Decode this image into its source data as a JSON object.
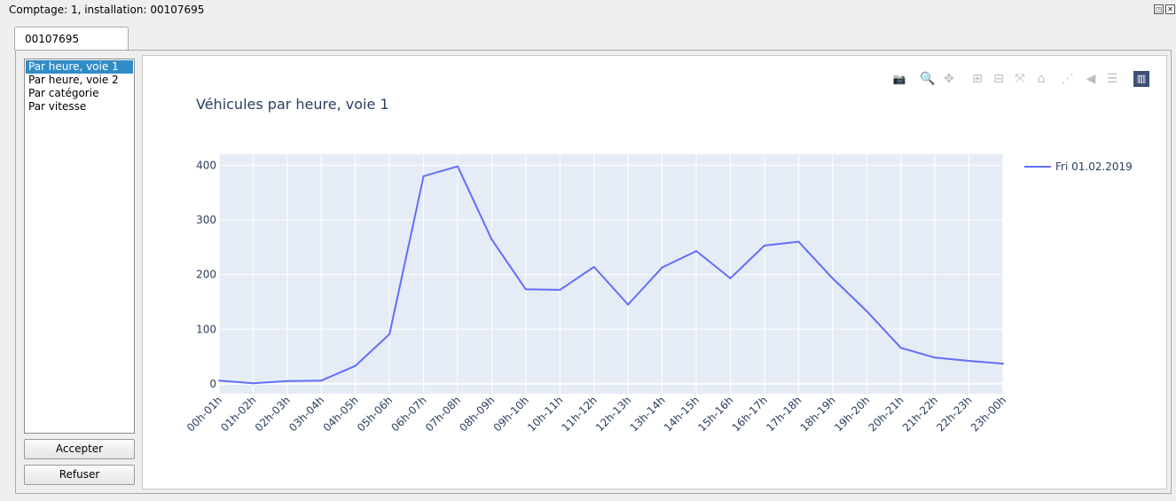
{
  "window": {
    "title": "Comptage: 1, installation: 00107695",
    "restore_glyph": "◳",
    "close_glyph": "✕"
  },
  "tabs": [
    {
      "label": "00107695"
    }
  ],
  "list": {
    "items": [
      {
        "label": "Par heure, voie 1",
        "selected": true
      },
      {
        "label": "Par heure, voie 2",
        "selected": false
      },
      {
        "label": "Par catégorie",
        "selected": false
      },
      {
        "label": "Par vitesse",
        "selected": false
      }
    ]
  },
  "buttons": {
    "accept": "Accepter",
    "reject": "Refuser"
  },
  "modebar": {
    "icons": [
      {
        "name": "camera-icon",
        "glyph": "📷"
      },
      {
        "name": "zoom-icon",
        "glyph": "🔍"
      },
      {
        "name": "pan-icon",
        "glyph": "✥"
      },
      {
        "name": "zoom-in-icon",
        "glyph": "⊞"
      },
      {
        "name": "zoom-out-icon",
        "glyph": "⊟"
      },
      {
        "name": "autoscale-icon",
        "glyph": "⤧"
      },
      {
        "name": "reset-axes-icon",
        "glyph": "⌂"
      },
      {
        "name": "spike-lines-icon",
        "glyph": "⋰"
      },
      {
        "name": "hover-closest-icon",
        "glyph": "◀"
      },
      {
        "name": "hover-compare-icon",
        "glyph": "☰"
      },
      {
        "name": "plotly-logo-icon",
        "glyph": "▥"
      }
    ]
  },
  "colors": {
    "line": "#636efa",
    "plot_bg": "#e5ecf6",
    "axis_text": "#2a3f5f",
    "selected_item": "#308cc6"
  },
  "chart_data": {
    "type": "line",
    "title": "Véhicules par heure, voie 1",
    "categories": [
      "00h-01h",
      "01h-02h",
      "02h-03h",
      "03h-04h",
      "04h-05h",
      "05h-06h",
      "06h-07h",
      "07h-08h",
      "08h-09h",
      "09h-10h",
      "10h-11h",
      "11h-12h",
      "12h-13h",
      "13h-14h",
      "14h-15h",
      "15h-16h",
      "16h-17h",
      "17h-18h",
      "18h-19h",
      "19h-20h",
      "20h-21h",
      "21h-22h",
      "22h-23h",
      "23h-00h"
    ],
    "series": [
      {
        "name": "Fri 01.02.2019",
        "values": [
          6,
          1,
          5,
          6,
          33,
          91,
          380,
          398,
          264,
          173,
          172,
          214,
          145,
          213,
          243,
          193,
          253,
          260,
          193,
          133,
          66,
          48,
          42,
          37
        ]
      }
    ],
    "ylim": [
      -18,
      420
    ],
    "yticks": [
      0,
      100,
      200,
      300,
      400
    ],
    "grid": true,
    "legend_position": "right"
  }
}
